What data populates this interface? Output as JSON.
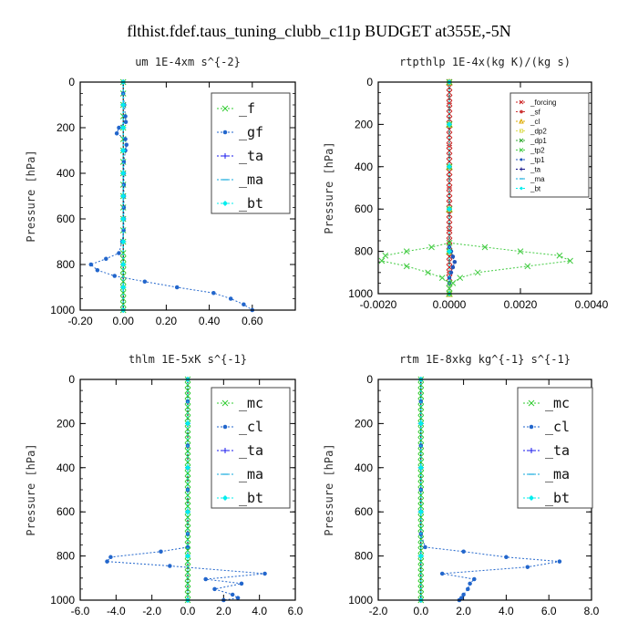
{
  "title": "flthist.fdef.taus_tuning_clubb_c11p  BUDGET at355E,-5N",
  "chart_data": [
    {
      "type": "line",
      "title": "um   1E-4xm s^{-2}",
      "ylabel": "Pressure [hPa]",
      "xlim": [
        -0.2,
        0.8
      ],
      "ylim": [
        1000,
        0
      ],
      "xticks": [
        -0.2,
        0.0,
        0.2,
        0.4,
        0.6
      ],
      "xtick_labels": [
        "-0.20",
        "0.00",
        "0.20",
        "0.40",
        "0.60"
      ],
      "yticks": [
        0,
        200,
        400,
        600,
        800,
        1000
      ],
      "ytick_labels": [
        "0",
        "200",
        "400",
        "600",
        "800",
        "1000"
      ],
      "legend_position": "top-right",
      "series": [
        {
          "name": "_f",
          "color": "#33cc33",
          "marker": "x",
          "y": [
            0,
            50,
            100,
            150,
            200,
            250,
            300,
            350,
            400,
            450,
            500,
            550,
            600,
            650,
            700,
            750,
            775,
            800,
            825,
            850,
            875,
            900,
            925,
            950,
            975,
            1000
          ],
          "x": [
            0,
            0,
            0,
            0,
            0,
            0,
            0,
            0,
            0,
            0,
            0,
            0,
            0,
            0,
            0,
            0,
            0,
            0,
            0,
            0,
            0,
            0,
            0,
            0,
            0,
            0
          ]
        },
        {
          "name": "_gf",
          "color": "#2266cc",
          "marker": "dot",
          "y": [
            0,
            50,
            100,
            150,
            175,
            200,
            225,
            250,
            275,
            300,
            350,
            400,
            450,
            500,
            550,
            600,
            650,
            700,
            750,
            775,
            800,
            825,
            850,
            875,
            900,
            925,
            950,
            975,
            1000
          ],
          "x": [
            0,
            0,
            0.005,
            0.01,
            0.012,
            -0.02,
            -0.03,
            0.01,
            0.015,
            0.01,
            0.003,
            0.003,
            0.003,
            0.003,
            0.003,
            0.003,
            0.002,
            -0.005,
            -0.02,
            -0.08,
            -0.15,
            -0.12,
            -0.04,
            0.1,
            0.25,
            0.42,
            0.5,
            0.56,
            0.6
          ]
        },
        {
          "name": "_ta",
          "color": "#1a1aee",
          "marker": "plus",
          "y": [
            0,
            100,
            200,
            300,
            400,
            500,
            600,
            700,
            800,
            900,
            1000
          ],
          "x": [
            0,
            0,
            0,
            0,
            0,
            0,
            0,
            0,
            0,
            0,
            0
          ]
        },
        {
          "name": "_ma",
          "color": "#11aadd",
          "marker": "dash",
          "y": [
            0,
            100,
            200,
            300,
            400,
            500,
            600,
            700,
            800,
            900,
            1000
          ],
          "x": [
            0,
            0,
            0,
            0,
            0,
            0,
            0,
            0,
            0,
            0,
            0
          ]
        },
        {
          "name": "_bt",
          "color": "#00eeee",
          "marker": "diamond",
          "y": [
            0,
            100,
            200,
            300,
            400,
            500,
            600,
            700,
            800,
            900,
            1000
          ],
          "x": [
            0,
            0,
            0,
            0,
            0,
            0,
            0,
            0,
            0,
            0,
            0
          ]
        }
      ]
    },
    {
      "type": "line",
      "title": "rtpthlp   1E-4x(kg K)/(kg s)",
      "ylabel": "Pressure [hPa]",
      "xlim": [
        -0.002,
        0.004
      ],
      "ylim": [
        1000,
        0
      ],
      "xticks": [
        -0.002,
        0.0,
        0.002,
        0.004
      ],
      "xtick_labels": [
        "-0.0020",
        "0.0000",
        "0.0020",
        "0.0040"
      ],
      "yticks": [
        0,
        200,
        400,
        600,
        800,
        1000
      ],
      "ytick_labels": [
        "0",
        "200",
        "400",
        "600",
        "800",
        "1000"
      ],
      "legend_position": "top-right",
      "series": [
        {
          "name": "_forcing",
          "color": "#cc2222",
          "marker": "x",
          "y": [
            0,
            25,
            50,
            75,
            100,
            125,
            150,
            175,
            200,
            225,
            250,
            275,
            300,
            325,
            350,
            375,
            400,
            425,
            450,
            475,
            500,
            525,
            550,
            575,
            600,
            625,
            650,
            675,
            700,
            725,
            750,
            775,
            800,
            825,
            850,
            875,
            900,
            925,
            950,
            975,
            1000
          ],
          "x": [
            0,
            0,
            0,
            0,
            0,
            0,
            0,
            0,
            0,
            0,
            0,
            0,
            0,
            0,
            0,
            0,
            0,
            0,
            0,
            0,
            0,
            0,
            0,
            0,
            0,
            0,
            0,
            0,
            0,
            0,
            0,
            0,
            0,
            0,
            0,
            0,
            0,
            0,
            0,
            0,
            0
          ]
        },
        {
          "name": "_sf",
          "color": "#cc3333",
          "marker": "star",
          "y": [
            0,
            100,
            200,
            300,
            400,
            500,
            600,
            700,
            800,
            900,
            1000
          ],
          "x": [
            0,
            0,
            0,
            0,
            0,
            0,
            0,
            0,
            0,
            0,
            0
          ]
        },
        {
          "name": "_cl",
          "color": "#ddaa00",
          "marker": "tri",
          "y": [
            0,
            200,
            400,
            600,
            800,
            1000
          ],
          "x": [
            0,
            0,
            0,
            0,
            0,
            0
          ]
        },
        {
          "name": "_dp2",
          "color": "#dddd55",
          "marker": "sq",
          "y": [
            0,
            200,
            400,
            600,
            800,
            1000
          ],
          "x": [
            0,
            0,
            0,
            0,
            0,
            0
          ]
        },
        {
          "name": "_dp1",
          "color": "#33aa33",
          "marker": "x",
          "y": [
            0,
            200,
            400,
            600,
            800,
            1000
          ],
          "x": [
            0,
            0,
            0,
            0,
            0,
            0
          ]
        },
        {
          "name": "_tp2",
          "color": "#44cc44",
          "marker": "x",
          "y": [
            760,
            780,
            800,
            820,
            845,
            870,
            900,
            925,
            950,
            975
          ],
          "x": [
            0,
            0.001,
            0.002,
            0.0031,
            0.0034,
            0.0022,
            0.0008,
            0.0003,
            0.0001,
            0
          ]
        },
        {
          "name": "_tp1",
          "color": "#2255bb",
          "marker": "dot",
          "y": [
            780,
            800,
            825,
            850,
            875,
            900,
            925,
            950
          ],
          "x": [
            0,
            5e-05,
            0.0001,
            0.00015,
            0.0001,
            5e-05,
            0,
            0
          ]
        },
        {
          "name": "_ta",
          "color": "#111188",
          "marker": "plus",
          "y": [
            0,
            200,
            400,
            600,
            800,
            1000
          ],
          "x": [
            0,
            0,
            0,
            0,
            0,
            0
          ]
        },
        {
          "name": "_ma",
          "color": "#11aadd",
          "marker": "dash",
          "y": [
            0,
            200,
            400,
            600,
            800,
            1000
          ],
          "x": [
            0,
            0,
            0,
            0,
            0,
            0
          ]
        },
        {
          "name": "_bt",
          "color": "#00eeee",
          "marker": "diamond",
          "y": [
            0,
            200,
            400,
            600,
            800,
            1000
          ],
          "x": [
            0,
            0,
            0,
            0,
            0,
            0
          ]
        },
        {
          "name": "",
          "color": "#44cc44",
          "marker": "x",
          "y": [
            760,
            780,
            800,
            820,
            845,
            870,
            900,
            925,
            950,
            975,
            1000
          ],
          "x": [
            0,
            -0.0005,
            -0.0012,
            -0.0018,
            -0.0019,
            -0.0012,
            -0.0006,
            -0.0002,
            0,
            0,
            0
          ]
        }
      ]
    },
    {
      "type": "line",
      "title": "thlm   1E-5xK s^{-1}",
      "ylabel": "Pressure [hPa]",
      "xlim": [
        -6.0,
        6.0
      ],
      "ylim": [
        1000,
        0
      ],
      "xticks": [
        -6,
        -4,
        -2,
        0,
        2,
        4,
        6
      ],
      "xtick_labels": [
        "-6.0",
        "-4.0",
        "-2.0",
        "0.0",
        "2.0",
        "4.0",
        "6.0"
      ],
      "yticks": [
        0,
        200,
        400,
        600,
        800,
        1000
      ],
      "ytick_labels": [
        "0",
        "200",
        "400",
        "600",
        "800",
        "1000"
      ],
      "legend_position": "top-right",
      "series": [
        {
          "name": "_mc",
          "color": "#33cc33",
          "marker": "x",
          "y": [
            0,
            25,
            50,
            75,
            100,
            125,
            150,
            175,
            200,
            225,
            250,
            275,
            300,
            325,
            350,
            375,
            400,
            425,
            450,
            475,
            500,
            525,
            550,
            575,
            600,
            625,
            650,
            675,
            700,
            725,
            750,
            775,
            800,
            825,
            850,
            875,
            900,
            925,
            950,
            975,
            1000
          ],
          "x": [
            0,
            0,
            0,
            0,
            0,
            0,
            0,
            0,
            0,
            0,
            0,
            0,
            0,
            0,
            0,
            0,
            0,
            0,
            0,
            0,
            0,
            0,
            0,
            0,
            0,
            0,
            0,
            0,
            0,
            0,
            0,
            0,
            0,
            0,
            0,
            0,
            0,
            0,
            0,
            0,
            0
          ]
        },
        {
          "name": "_cl",
          "color": "#2266cc",
          "marker": "dot",
          "y": [
            0,
            100,
            200,
            300,
            400,
            500,
            600,
            700,
            760,
            780,
            805,
            825,
            845,
            880,
            905,
            925,
            950,
            975,
            990,
            1000
          ],
          "x": [
            0,
            0,
            0,
            0,
            0,
            0,
            0,
            0,
            0,
            -1.5,
            -4.3,
            -4.5,
            -1.0,
            4.3,
            1.0,
            3.0,
            1.5,
            2.5,
            2.8,
            2.0
          ]
        },
        {
          "name": "_ta",
          "color": "#1a1aee",
          "marker": "plus",
          "y": [
            0,
            200,
            400,
            600,
            800,
            1000
          ],
          "x": [
            0,
            0,
            0,
            0,
            0,
            0
          ]
        },
        {
          "name": "_ma",
          "color": "#11aadd",
          "marker": "dash",
          "y": [
            0,
            200,
            400,
            600,
            800,
            1000
          ],
          "x": [
            0,
            0,
            0,
            0,
            0,
            0
          ]
        },
        {
          "name": "_bt",
          "color": "#00eeee",
          "marker": "diamond",
          "y": [
            0,
            200,
            400,
            600,
            800,
            1000
          ],
          "x": [
            0,
            0,
            0,
            0,
            0,
            0
          ]
        }
      ]
    },
    {
      "type": "line",
      "title": "rtm   1E-8xkg kg^{-1} s^{-1}",
      "ylabel": "Pressure [hPa]",
      "xlim": [
        -2.0,
        8.0
      ],
      "ylim": [
        1000,
        0
      ],
      "xticks": [
        -2,
        0,
        2,
        4,
        6,
        8
      ],
      "xtick_labels": [
        "-2.0",
        "0.0",
        "2.0",
        "4.0",
        "6.0",
        "8.0"
      ],
      "yticks": [
        0,
        200,
        400,
        600,
        800,
        1000
      ],
      "ytick_labels": [
        "0",
        "200",
        "400",
        "600",
        "800",
        "1000"
      ],
      "legend_position": "top-right",
      "series": [
        {
          "name": "_mc",
          "color": "#33cc33",
          "marker": "x",
          "y": [
            0,
            25,
            50,
            75,
            100,
            125,
            150,
            175,
            200,
            225,
            250,
            275,
            300,
            325,
            350,
            375,
            400,
            425,
            450,
            475,
            500,
            525,
            550,
            575,
            600,
            625,
            650,
            675,
            700,
            725,
            750,
            775,
            800,
            825,
            850,
            875,
            900,
            925,
            950,
            975,
            1000
          ],
          "x": [
            0,
            0,
            0,
            0,
            0,
            0,
            0,
            0,
            0,
            0,
            0,
            0,
            0,
            0,
            0,
            0,
            0,
            0,
            0,
            0,
            0,
            0,
            0,
            0,
            0,
            0,
            0,
            0,
            0,
            0,
            0,
            0,
            0,
            0,
            0,
            0,
            0,
            0,
            0,
            0,
            0
          ]
        },
        {
          "name": "_cl",
          "color": "#2266cc",
          "marker": "dot",
          "y": [
            0,
            100,
            200,
            300,
            400,
            500,
            600,
            700,
            760,
            780,
            805,
            825,
            850,
            880,
            905,
            925,
            950,
            975,
            990,
            1000
          ],
          "x": [
            0,
            0,
            0,
            0,
            0,
            0,
            0,
            0,
            0.2,
            2.0,
            4.0,
            6.5,
            5.0,
            1.0,
            2.5,
            2.3,
            2.2,
            2.0,
            1.9,
            1.8
          ]
        },
        {
          "name": "_ta",
          "color": "#1a1aee",
          "marker": "plus",
          "y": [
            0,
            200,
            400,
            600,
            800,
            1000
          ],
          "x": [
            0,
            0,
            0,
            0,
            0,
            0
          ]
        },
        {
          "name": "_ma",
          "color": "#11aadd",
          "marker": "dash",
          "y": [
            0,
            200,
            400,
            600,
            800,
            1000
          ],
          "x": [
            0,
            0,
            0,
            0,
            0,
            0
          ]
        },
        {
          "name": "_bt",
          "color": "#00eeee",
          "marker": "diamond",
          "y": [
            0,
            200,
            400,
            600,
            800,
            1000
          ],
          "x": [
            0,
            0,
            0,
            0,
            0,
            0
          ]
        }
      ]
    }
  ]
}
